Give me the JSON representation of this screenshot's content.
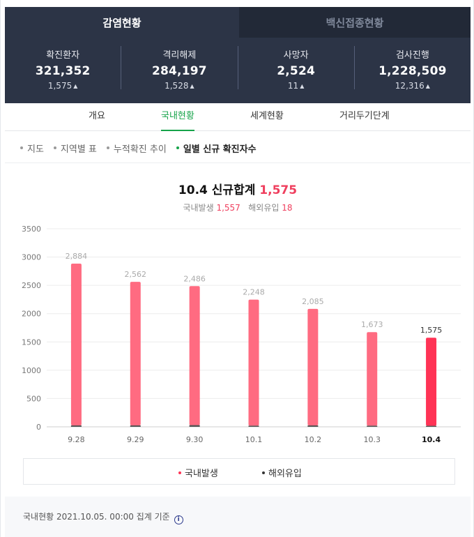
{
  "top_tabs": {
    "active": "감염현황",
    "inactive": "백신접종현황"
  },
  "stats": [
    {
      "label": "확진환자",
      "value": "321,352",
      "change": "1,575"
    },
    {
      "label": "격리해제",
      "value": "284,197",
      "change": "1,528"
    },
    {
      "label": "사망자",
      "value": "2,524",
      "change": "11"
    },
    {
      "label": "검사진행",
      "value": "1,228,509",
      "change": "12,316"
    }
  ],
  "sub_tabs": [
    "개요",
    "국내현황",
    "세계현황",
    "거리두기단계"
  ],
  "mini_tabs": [
    "지도",
    "지역별 표",
    "누적확진 추이",
    "일별 신규 확진자수"
  ],
  "chart_header": {
    "title_prefix": "10.4 신규합계",
    "title_total": "1,575",
    "domestic_label": "국내발생",
    "domestic_value": "1,557",
    "overseas_label": "해외유입",
    "overseas_value": "18"
  },
  "chart_data": {
    "type": "bar",
    "categories": [
      "9.28",
      "9.29",
      "9.30",
      "10.1",
      "10.2",
      "10.3",
      "10.4"
    ],
    "series": [
      {
        "name": "국내발생",
        "values": [
          2859,
          2537,
          2456,
          2228,
          2060,
          1653,
          1557
        ]
      },
      {
        "name": "해외유입",
        "values": [
          25,
          25,
          30,
          20,
          25,
          20,
          18
        ]
      }
    ],
    "totals": [
      2884,
      2562,
      2486,
      2248,
      2085,
      1673,
      1575
    ],
    "total_labels": [
      "2,884",
      "2,562",
      "2,486",
      "2,248",
      "2,085",
      "1,673",
      "1,575"
    ],
    "y_ticks": [
      "0",
      "500",
      "1000",
      "1500",
      "2000",
      "2500",
      "3000",
      "3500"
    ],
    "ylim": [
      0,
      3500
    ],
    "grid": true,
    "colors": {
      "domestic": "#ff6b81",
      "overseas": "#555555",
      "highlight": "#ff3355"
    },
    "highlight_index": 6
  },
  "legend": [
    {
      "label": "국내발생",
      "color": "#ff3355"
    },
    {
      "label": "해외유입",
      "color": "#333333"
    }
  ],
  "footer": {
    "text": "국내현황 2021.10.05. 00:00 집계 기준",
    "info_icon": "i"
  }
}
